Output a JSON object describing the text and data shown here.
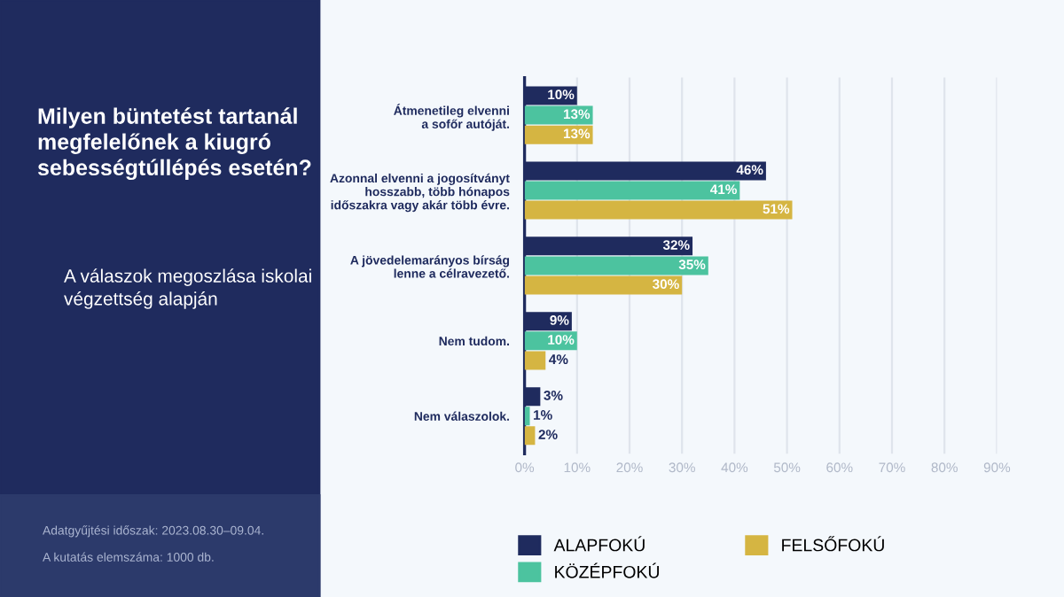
{
  "chart_data": {
    "type": "bar",
    "orientation": "horizontal",
    "title": "Milyen büntetést tartanál\nmegfelelőnek a kiugró\nsebességtúllépés esetén?",
    "subtitle": "A válaszok megoszlása iskolai\nvégzettség alapján",
    "annotations": [
      "Adatgyűjtési időszak: 2023.08.30–09.04.",
      "A kutatás elemszáma: 1000 db."
    ],
    "categories": [
      "Átmenetileg elvenni\na sofőr autóját.",
      "Azonnal elvenni a jogosítványt\nhosszabb, több hónapos\nidőszakra vagy akár több évre.",
      "A jövedelemarányos bírság\nlenne a célravezető.",
      "Nem tudom.",
      "Nem válaszolok."
    ],
    "series": [
      {
        "name": "ALAPFOKÚ",
        "color": "#1f2b5e",
        "values": [
          10,
          46,
          32,
          9,
          3
        ],
        "value_labels": [
          "10%",
          "46%",
          "32%",
          "9%",
          "3%"
        ]
      },
      {
        "name": "KÖZÉPFOKÚ",
        "color": "#4cc39f",
        "values": [
          13,
          41,
          35,
          10,
          1
        ],
        "value_labels": [
          "13%",
          "41%",
          "35%",
          "10%",
          "1%"
        ]
      },
      {
        "name": "FELSŐFOKÚ",
        "color": "#d5b542",
        "values": [
          13,
          51,
          30,
          4,
          2
        ],
        "value_labels": [
          "13%",
          "51%",
          "30%",
          "4%",
          "2%"
        ]
      }
    ],
    "xlim": [
      0,
      90
    ],
    "xticks": [
      {
        "value": 0,
        "label": "0%"
      },
      {
        "value": 10,
        "label": "10%"
      },
      {
        "value": 20,
        "label": "20%"
      },
      {
        "value": 30,
        "label": "30%"
      },
      {
        "value": 40,
        "label": "40%"
      },
      {
        "value": 50,
        "label": "50%"
      },
      {
        "value": 60,
        "label": "60%"
      },
      {
        "value": 70,
        "label": "70%"
      },
      {
        "value": 80,
        "label": "80%"
      },
      {
        "value": 90,
        "label": "90%"
      }
    ],
    "grid": "x",
    "legend": "bottom"
  }
}
